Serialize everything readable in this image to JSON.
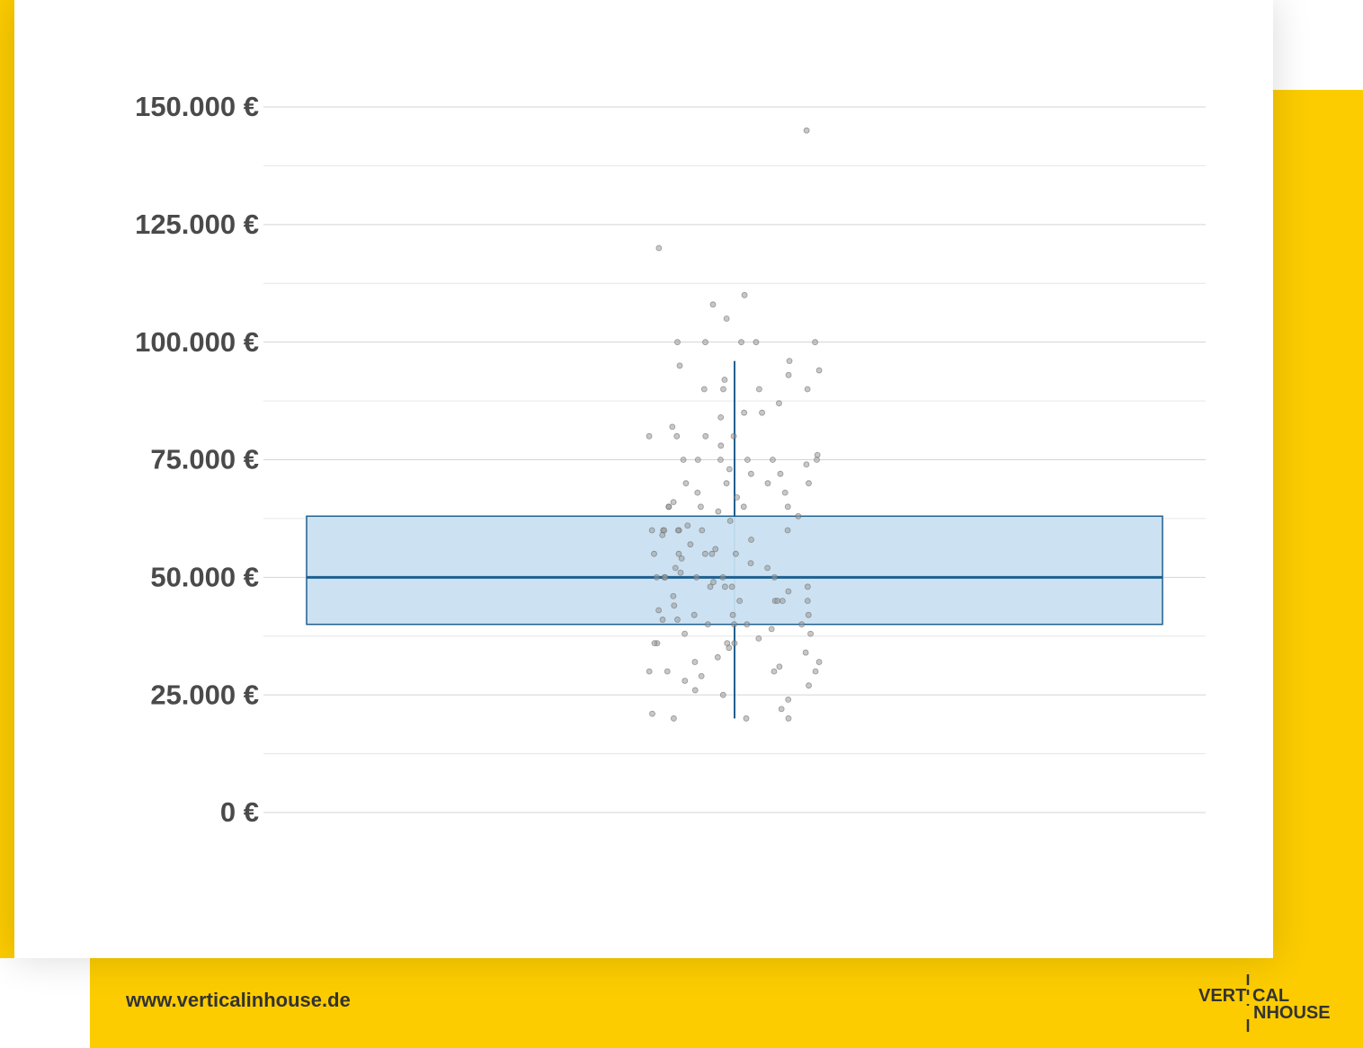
{
  "chart_data": {
    "type": "box",
    "ylim": [
      0,
      150000
    ],
    "yticks": [
      {
        "value": 0,
        "label": "0 €"
      },
      {
        "value": 25000,
        "label": "25.000 €"
      },
      {
        "value": 50000,
        "label": "50.000 €"
      },
      {
        "value": 75000,
        "label": "75.000 €"
      },
      {
        "value": 100000,
        "label": "100.000 €"
      },
      {
        "value": 125000,
        "label": "125.000 €"
      },
      {
        "value": 150000,
        "label": "150.000 €"
      }
    ],
    "grid": true,
    "minor_grid": true,
    "box": {
      "whisker_low": 20000,
      "q1": 40000,
      "median": 50000,
      "q3": 63000,
      "whisker_high": 96000,
      "color": "#1f5f8f",
      "fill": "#c9e0f1"
    },
    "point_color": "#999999",
    "points": [
      145000,
      120000,
      110000,
      108000,
      105000,
      100000,
      100000,
      100000,
      100000,
      100000,
      96000,
      95000,
      94000,
      93000,
      92000,
      90000,
      90000,
      90000,
      90000,
      87000,
      85000,
      85000,
      84000,
      82000,
      80000,
      80000,
      80000,
      80000,
      78000,
      76000,
      75000,
      75000,
      75000,
      75000,
      75000,
      75000,
      74000,
      73000,
      72000,
      72000,
      70000,
      70000,
      70000,
      70000,
      68000,
      68000,
      67000,
      66000,
      65000,
      65000,
      65000,
      65000,
      65000,
      64000,
      63000,
      62000,
      61000,
      60000,
      60000,
      60000,
      60000,
      60000,
      60000,
      60000,
      59000,
      58000,
      57000,
      56000,
      55000,
      55000,
      55000,
      55000,
      55000,
      54000,
      53000,
      52000,
      52000,
      51000,
      50000,
      50000,
      50000,
      50000,
      50000,
      50000,
      49000,
      48000,
      48000,
      48000,
      48000,
      47000,
      46000,
      45000,
      45000,
      45000,
      45000,
      45000,
      44000,
      43000,
      42000,
      42000,
      42000,
      41000,
      41000,
      40000,
      40000,
      40000,
      40000,
      39000,
      38000,
      38000,
      37000,
      36000,
      36000,
      36000,
      36000,
      35000,
      34000,
      33000,
      32000,
      32000,
      31000,
      30000,
      30000,
      30000,
      30000,
      29000,
      28000,
      27000,
      26000,
      25000,
      24000,
      22000,
      21000,
      20000,
      20000,
      20000
    ]
  },
  "footer": {
    "url": "www.verticalinhouse.de",
    "logo": {
      "part1": "VERT",
      "part2": "CAL",
      "part3": "NHOUSE"
    }
  }
}
